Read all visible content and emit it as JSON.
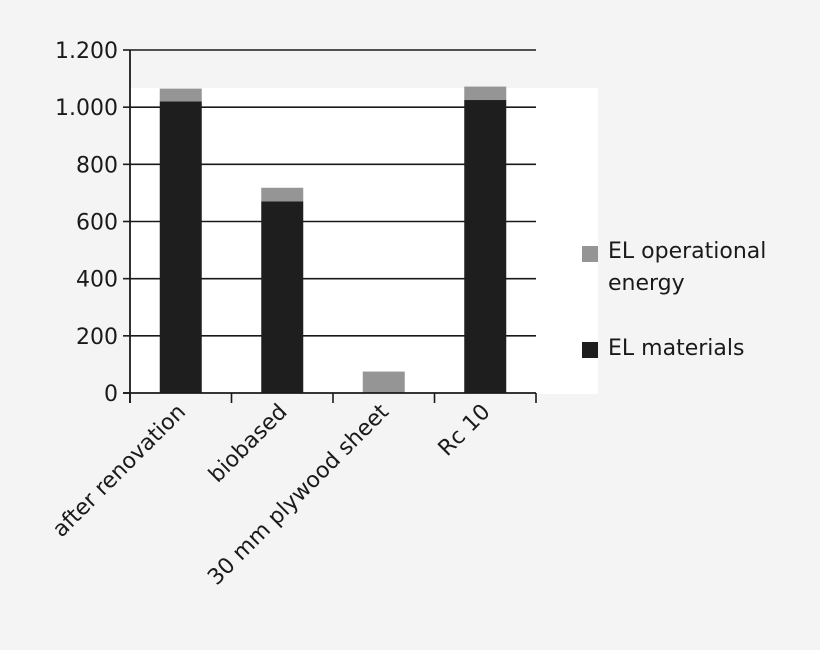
{
  "chart_data": {
    "type": "bar",
    "stacked": true,
    "categories": [
      "after renovation",
      "biobased",
      "30 mm plywood sheet",
      "Rc 10"
    ],
    "series": [
      {
        "name": "EL materials",
        "values": [
          1020,
          670,
          0,
          1025
        ],
        "color": "#1e1e1e"
      },
      {
        "name": "EL operational energy",
        "values": [
          45,
          48,
          75,
          47
        ],
        "color": "#959595"
      }
    ],
    "ylim": [
      0,
      1200
    ],
    "yticks": [
      0,
      200,
      400,
      600,
      800,
      1000,
      1200
    ],
    "ytick_labels": [
      "0",
      "200",
      "400",
      "600",
      "800",
      "1.000",
      "1.200"
    ],
    "grid": true,
    "legend_position": "right",
    "legend": [
      {
        "lines": [
          "EL operational",
          "energy"
        ],
        "color": "#959595"
      },
      {
        "lines": [
          "EL materials"
        ],
        "color": "#1e1e1e"
      }
    ],
    "title": "",
    "xlabel": "",
    "ylabel": ""
  }
}
